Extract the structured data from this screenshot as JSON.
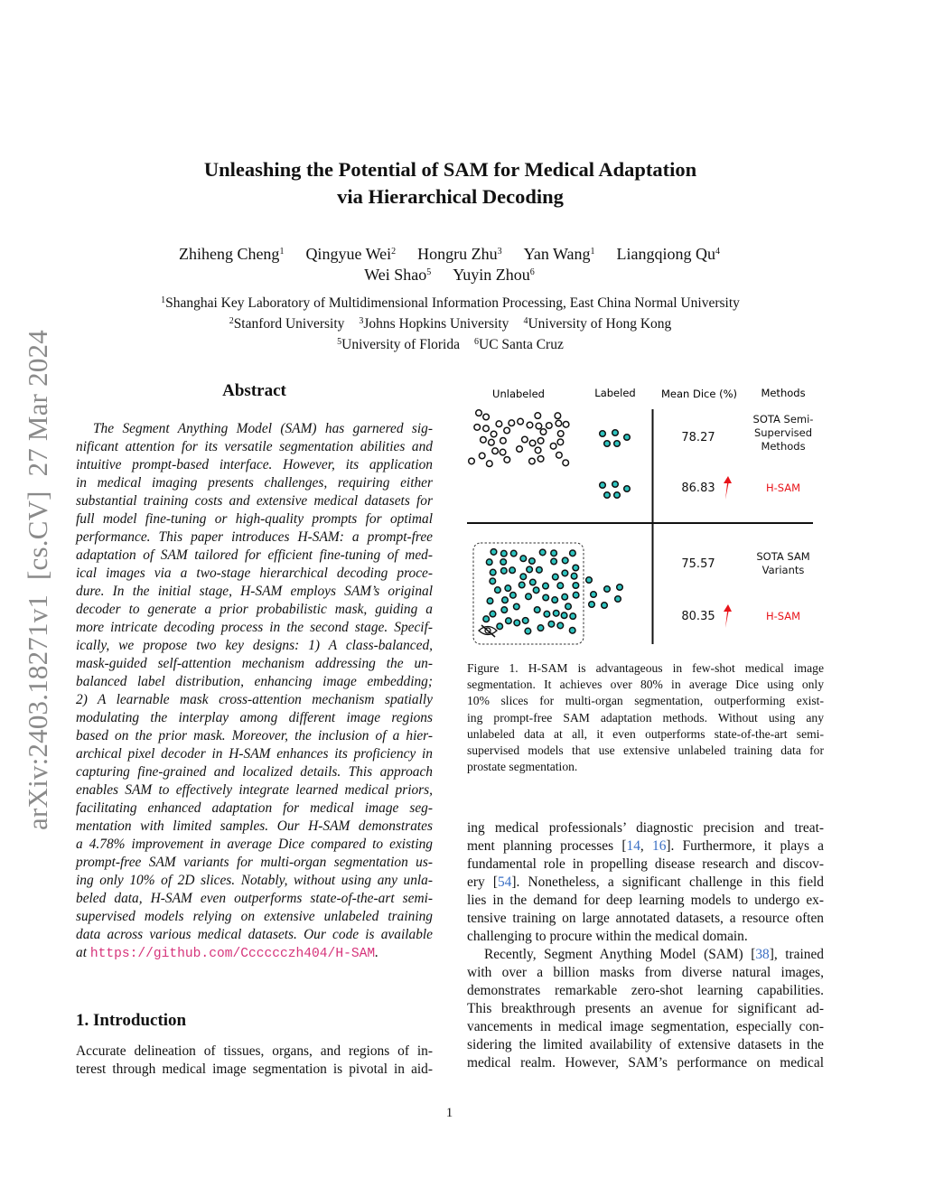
{
  "side_label": "arXiv:2403.18271v1  [cs.CV]  27 Mar 2024",
  "title": [
    "Unleashing the Potential of SAM for Medical Adaptation",
    "via Hierarchical Decoding"
  ],
  "authors": [
    [
      {
        "name": "Zhiheng Cheng",
        "sup": "1"
      },
      {
        "name": "Qingyue Wei",
        "sup": "2"
      },
      {
        "name": "Hongru Zhu",
        "sup": "3"
      },
      {
        "name": "Yan Wang",
        "sup": "1"
      },
      {
        "name": "Liangqiong Qu",
        "sup": "4"
      }
    ],
    [
      {
        "name": "Wei Shao",
        "sup": "5"
      },
      {
        "name": "Yuyin Zhou",
        "sup": "6"
      }
    ]
  ],
  "affiliations": [
    [
      {
        "sup": "1",
        "name": "Shanghai Key Laboratory of Multidimensional Information Processing, East China Normal University"
      }
    ],
    [
      {
        "sup": "2",
        "name": "Stanford University"
      },
      {
        "sup": "3",
        "name": "Johns Hopkins University"
      },
      {
        "sup": "4",
        "name": "University of Hong Kong"
      }
    ],
    [
      {
        "sup": "5",
        "name": "University of Florida"
      },
      {
        "sup": "6",
        "name": "UC Santa Cruz"
      }
    ]
  ],
  "abstract": {
    "heading": "Abstract",
    "paragraphs": [
      {
        "indent": true,
        "lines": [
          "The Segment Anything Model (SAM) has garnered sig-",
          "nificant attention for its versatile segmentation abilities and",
          "intuitive prompt-based interface. However, its application",
          "in medical imaging presents challenges, requiring either",
          "substantial training costs and extensive medical datasets for",
          "full model fine-tuning or high-quality prompts for optimal",
          "performance. This paper introduces H-SAM: a prompt-free",
          "adaptation of SAM tailored for efficient fine-tuning of med-",
          "ical images via a two-stage hierarchical decoding proce-",
          "dure. In the initial stage, H-SAM employs SAM’s original",
          "decoder to generate a prior probabilistic mask, guiding a",
          "more intricate decoding process in the second stage. Specif-",
          "ically, we propose two key designs: 1) A class-balanced,",
          "mask-guided self-attention mechanism addressing the un-",
          "balanced label distribution, enhancing image embedding;",
          "2) A learnable mask cross-attention mechanism spatially",
          "modulating the interplay among different image regions",
          "based on the prior mask. Moreover, the inclusion of a hier-",
          "archical pixel decoder in H-SAM enhances its proficiency in",
          "capturing fine-grained and localized details. This approach",
          "enables SAM to effectively integrate learned medical priors,",
          "facilitating enhanced adaptation for medical image seg-",
          "mentation with limited samples. Our H-SAM demonstrates",
          "a 4.78% improvement in average Dice compared to existing",
          "prompt-free SAM variants for multi-organ segmentation us-",
          "ing only 10% of 2D slices. Notably, without using any unla-",
          "beled data, H-SAM even outperforms state-of-the-art semi-",
          "supervised models relying on extensive unlabeled training",
          "data across various medical datasets. Our code is available",
          [
            "at ",
            {
              "url": "https://github.com/Cccccczh404/H-SAM"
            },
            "."
          ]
        ]
      }
    ]
  },
  "introduction": {
    "heading": "1. Introduction",
    "paragraphs": [
      {
        "indent": false,
        "open": true,
        "lines": [
          "Accurate delineation of tissues, organs, and regions of in-",
          "terest through medical image segmentation is pivotal in aid-"
        ]
      }
    ]
  },
  "figure": {
    "headers": {
      "unlabeled": "Unlabeled",
      "labeled": "Labeled",
      "dice": "Mean Dice (%)",
      "methods": "Methods"
    },
    "rows": [
      {
        "dice": "78.27",
        "method": [
          "SOTA Semi-",
          "Supervised",
          "Methods"
        ],
        "highlight": false
      },
      {
        "dice": "86.83",
        "method": [
          "H-SAM"
        ],
        "highlight": true
      },
      {
        "dice": "75.57",
        "method": [
          "SOTA SAM",
          "Variants"
        ],
        "highlight": false
      },
      {
        "dice": "80.35",
        "method": [
          "H-SAM"
        ],
        "highlight": true
      }
    ],
    "icons": [
      "open-circle-unlabeled",
      "teal-circle-labeled",
      "eye-slash-icon",
      "red-up-arrow-icon"
    ],
    "colors": {
      "labeled": "#2ec4c0",
      "highlight": "#e8141a",
      "line": "#111111"
    },
    "caption": [
      "Figure 1.   H-SAM is advantageous in few-shot medical image",
      "segmentation.  It achieves over 80% in average Dice using only",
      "10% slices for multi-organ segmentation, outperforming exist-",
      "ing prompt-free SAM adaptation methods.  Without using any",
      "unlabeled data at all, it even outperforms state-of-the-art semi-",
      "supervised models that use extensive unlabeled training data for",
      "prostate segmentation."
    ]
  },
  "right_body": {
    "paragraphs": [
      {
        "indent": false,
        "lines": [
          "ing medical professionals’ diagnostic precision and treat-",
          [
            "ment planning processes [",
            {
              "cite": "14"
            },
            ", ",
            {
              "cite": "16"
            },
            "].  Furthermore, it plays a"
          ],
          "fundamental role in propelling disease research and discov-",
          [
            "ery [",
            {
              "cite": "54"
            },
            "].  Nonetheless, a significant challenge in this field"
          ],
          "lies in the demand for deep learning models to undergo ex-",
          "tensive training on large annotated datasets, a resource often",
          "challenging to procure within the medical domain."
        ]
      },
      {
        "indent": true,
        "open": true,
        "lines": [
          [
            "Recently, Segment Anything Model (SAM) [",
            {
              "cite": "38"
            },
            "], trained"
          ],
          "with over a billion masks from diverse natural images,",
          "demonstrates remarkable zero-shot learning capabilities.",
          "This breakthrough presents an avenue for significant ad-",
          "vancements in medical image segmentation, especially con-",
          "sidering the limited availability of extensive datasets in the",
          "medical realm.  However, SAM’s performance on medical"
        ]
      }
    ]
  },
  "page_number": "1"
}
